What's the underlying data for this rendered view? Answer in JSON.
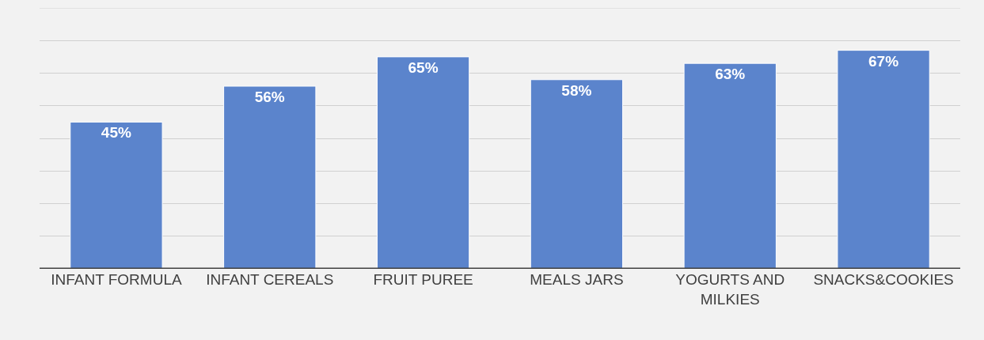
{
  "chart_data": {
    "type": "bar",
    "categories": [
      "INFANT FORMULA",
      "INFANT CEREALS",
      "FRUIT PUREE",
      "MEALS JARS",
      "YOGURTS AND MILKIES",
      "SNACKS&COOKIES"
    ],
    "values": [
      45,
      56,
      65,
      58,
      63,
      67
    ],
    "value_labels": [
      "45%",
      "56%",
      "65%",
      "58%",
      "63%",
      "67%"
    ],
    "color": "#5b84cc",
    "ylim": [
      0,
      80
    ],
    "yticks": [
      {
        "value": 0,
        "label": null
      },
      {
        "value": 10,
        "label": null
      },
      {
        "value": 20,
        "label": null
      },
      {
        "value": 30,
        "label": null
      },
      {
        "value": 40,
        "label": null
      },
      {
        "value": 50,
        "label": null
      },
      {
        "value": 60,
        "label": null
      },
      {
        "value": 70,
        "label": null
      }
    ],
    "grid": "y",
    "tick_labels": "x"
  }
}
